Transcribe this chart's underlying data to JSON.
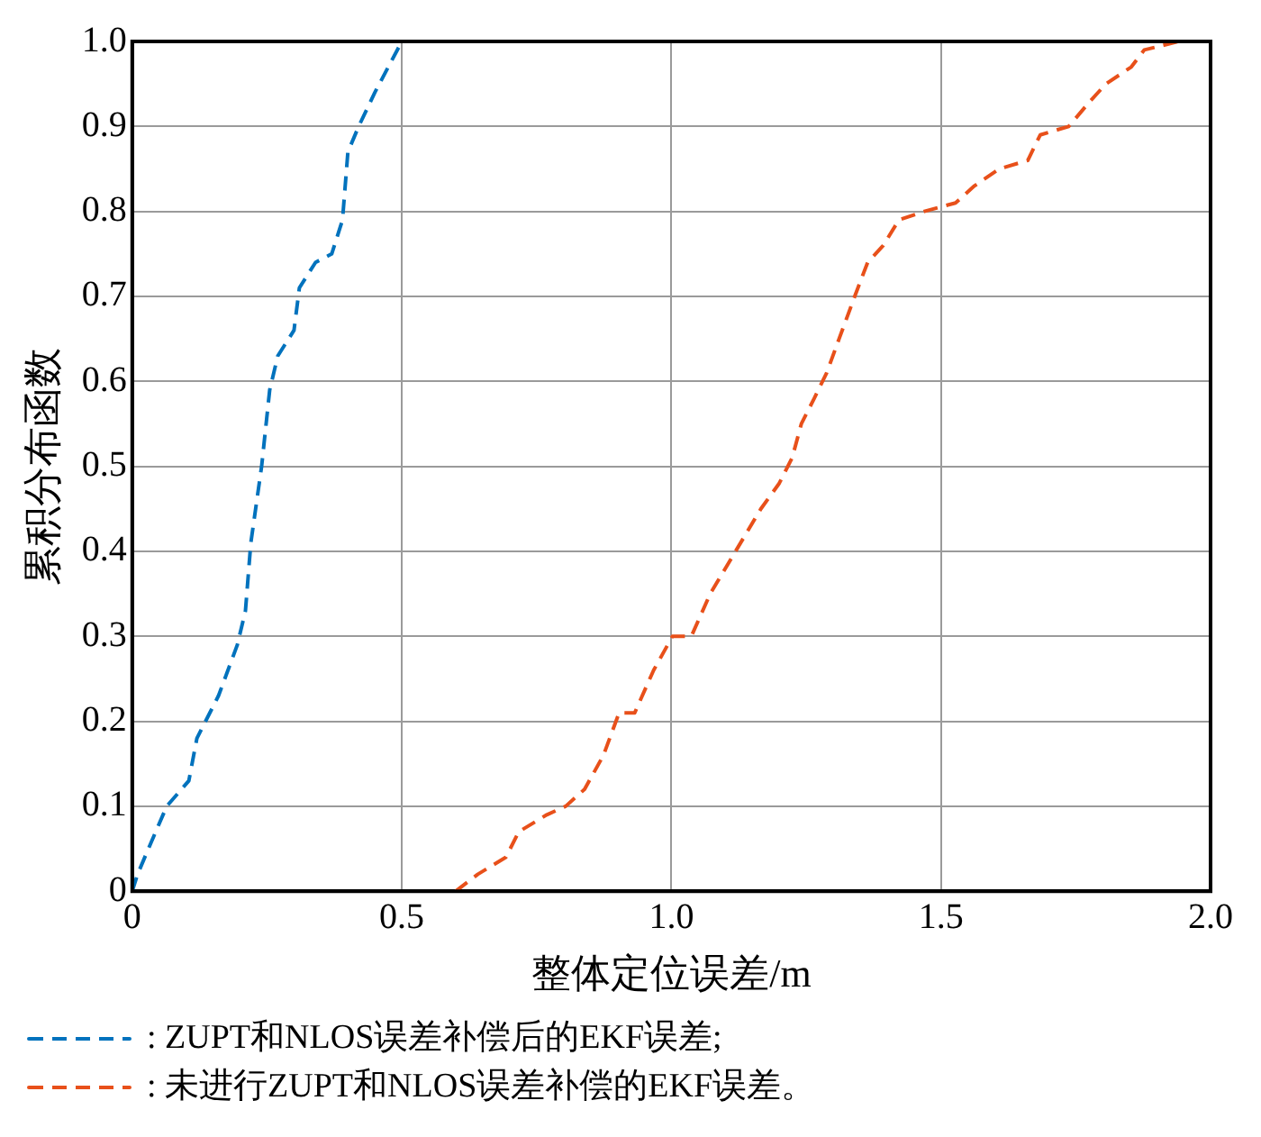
{
  "chart_data": {
    "type": "line",
    "xlabel": "整体定位误差/m",
    "ylabel": "累积分布函数",
    "xlim": [
      0,
      2
    ],
    "xticks": [
      0,
      0.5,
      {
        "value": 1,
        "label": "1.0"
      },
      1.5,
      {
        "value": 2,
        "label": "2.0"
      }
    ],
    "ylim": [
      0,
      1
    ],
    "yticks": [
      0,
      0.1,
      0.2,
      0.3,
      0.4,
      0.5,
      0.6,
      0.7,
      0.8,
      0.9,
      {
        "value": 1,
        "label": "1.0"
      }
    ],
    "grid": true,
    "legend": "bottom",
    "line_style": "dashed",
    "marker": "none",
    "series": [
      {
        "name": ": ZUPT和NLOS误差补偿后的EKF误差;",
        "color": "#0072bd",
        "x": [
          0,
          0.01,
          0.03,
          0.064,
          0.105,
          0.12,
          0.16,
          0.195,
          0.21,
          0.22,
          0.24,
          0.255,
          0.27,
          0.3,
          0.31,
          0.34,
          0.37,
          0.39,
          0.4,
          0.42,
          0.45,
          0.5
        ],
        "values": [
          0,
          0.02,
          0.05,
          0.1,
          0.13,
          0.18,
          0.23,
          0.29,
          0.33,
          0.41,
          0.5,
          0.59,
          0.63,
          0.66,
          0.71,
          0.74,
          0.75,
          0.79,
          0.87,
          0.9,
          0.94,
          1.0
        ]
      },
      {
        "name": ": 未进行ZUPT和NLOS误差补偿的EKF误差。",
        "color": "#e8501a",
        "x": [
          0.6,
          0.641,
          0.693,
          0.717,
          0.769,
          0.804,
          0.839,
          0.874,
          0.903,
          0.932,
          0.967,
          1.002,
          1.037,
          1.072,
          1.119,
          1.166,
          1.2,
          1.224,
          1.241,
          1.265,
          1.288,
          1.311,
          1.34,
          1.364,
          1.393,
          1.422,
          1.469,
          1.527,
          1.562,
          1.608,
          1.661,
          1.684,
          1.737,
          1.777,
          1.806,
          1.853,
          1.877,
          1.941
        ],
        "values": [
          0,
          0.02,
          0.04,
          0.07,
          0.09,
          0.1,
          0.12,
          0.16,
          0.21,
          0.21,
          0.26,
          0.3,
          0.3,
          0.35,
          0.4,
          0.45,
          0.48,
          0.51,
          0.55,
          0.58,
          0.61,
          0.65,
          0.7,
          0.74,
          0.76,
          0.79,
          0.8,
          0.81,
          0.83,
          0.85,
          0.86,
          0.89,
          0.9,
          0.93,
          0.95,
          0.97,
          0.99,
          1.0
        ]
      }
    ]
  }
}
